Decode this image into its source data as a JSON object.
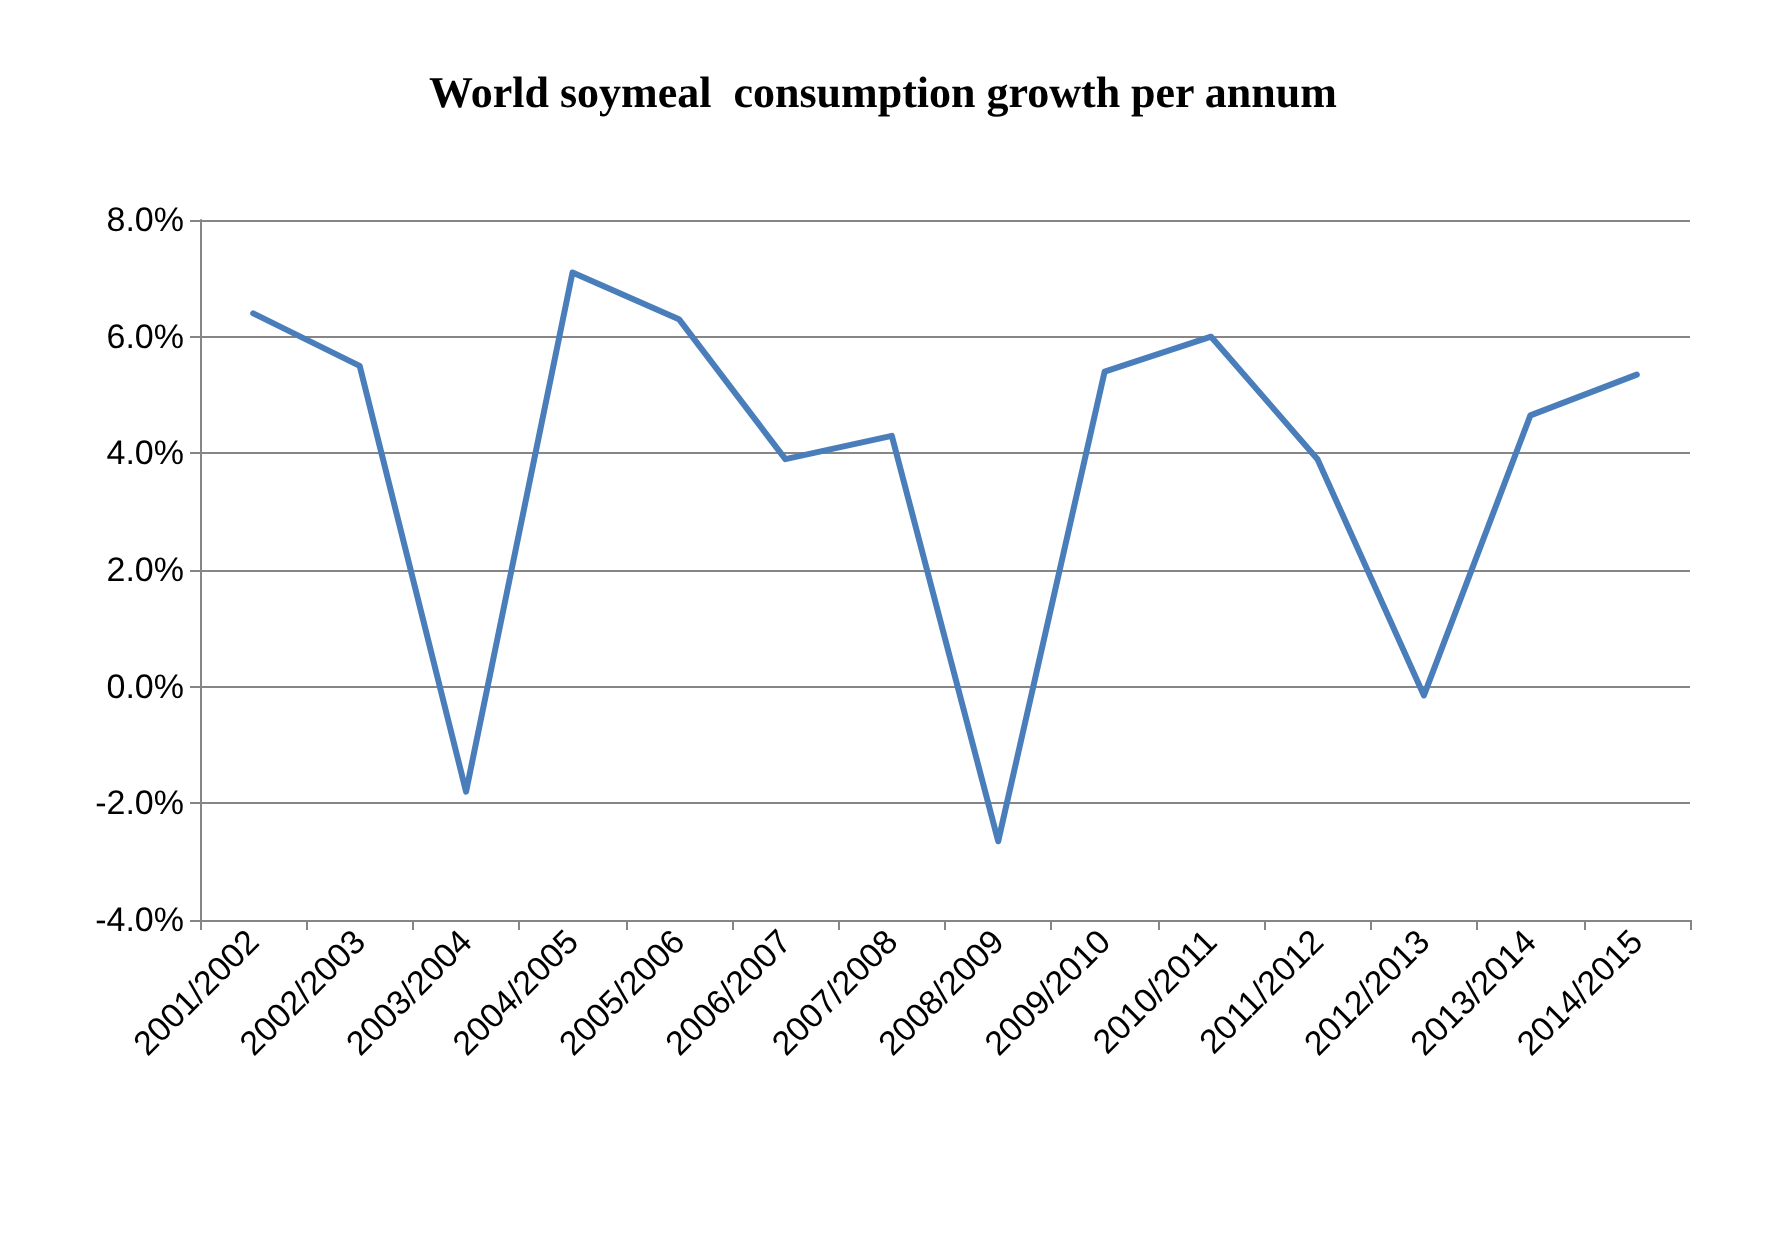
{
  "chart_data": {
    "type": "line",
    "title": "World soymeal  consumption growth per annum",
    "categories": [
      "2001/2002",
      "2002/2003",
      "2003/2004",
      "2004/2005",
      "2005/2006",
      "2006/2007",
      "2007/2008",
      "2008/2009",
      "2009/2010",
      "2010/2011",
      "2011/2012",
      "2012/2013",
      "2013/2014",
      "2014/2015"
    ],
    "series": [
      {
        "color": "#4a7ebb",
        "values": [
          6.4,
          5.5,
          -1.8,
          7.1,
          6.3,
          3.9,
          4.3,
          -2.65,
          5.4,
          6.0,
          3.9,
          -0.15,
          4.65,
          5.35
        ]
      }
    ],
    "ylim": [
      -4,
      8
    ],
    "yticks": [
      {
        "value": -4,
        "label": "-4.0%"
      },
      {
        "value": -2,
        "label": "-2.0%"
      },
      {
        "value": 0,
        "label": "0.0%"
      },
      {
        "value": 2,
        "label": "2.0%"
      },
      {
        "value": 4,
        "label": "4.0%"
      },
      {
        "value": 6,
        "label": "6.0%"
      },
      {
        "value": 8,
        "label": "8.0%"
      }
    ],
    "grid": "y",
    "marker": "none",
    "line_style": "solid"
  }
}
